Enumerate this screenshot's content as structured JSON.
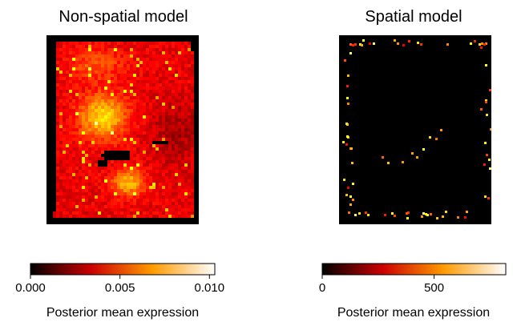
{
  "chart_data": [
    {
      "type": "heatmap",
      "title": "Non-spatial model",
      "colormap": "hot",
      "colorbar": {
        "label": "Posterior mean expression",
        "range": [
          0.0,
          0.0103
        ],
        "ticks": [
          0.0,
          0.005,
          0.01
        ],
        "tick_labels": [
          "0.000",
          "0.005",
          "0.010"
        ]
      },
      "axes": {
        "visible": false,
        "grid": false
      },
      "background": "#000000"
    },
    {
      "type": "heatmap",
      "title": "Spatial model",
      "colormap": "hot",
      "colorbar": {
        "label": "Posterior mean expression",
        "range": [
          0,
          820
        ],
        "ticks": [
          0,
          500
        ],
        "tick_labels": [
          "0",
          "500"
        ]
      },
      "axes": {
        "visible": false,
        "grid": false
      },
      "background": "#000000"
    }
  ]
}
